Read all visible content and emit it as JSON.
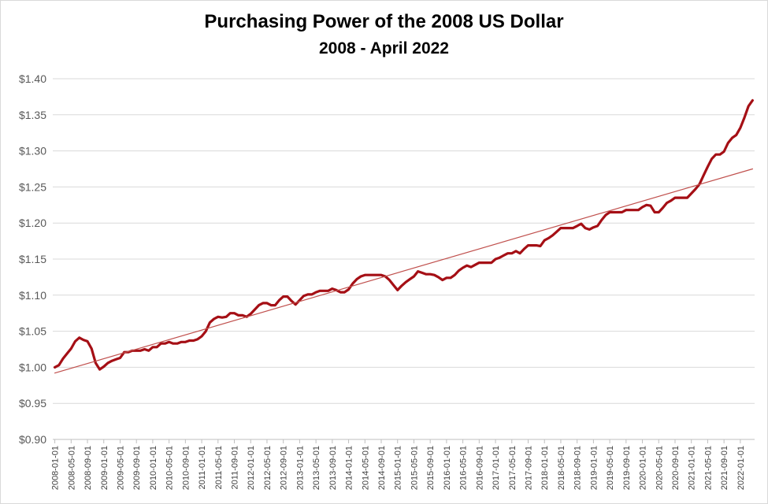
{
  "chart_data": {
    "type": "line",
    "title": "Purchasing Power of the 2008 US Dollar",
    "subtitle": "2008 - April 2022",
    "xlabel": "",
    "ylabel": "",
    "ylim": [
      0.9,
      1.4
    ],
    "y_ticks": [
      "$0.90",
      "$0.95",
      "$1.00",
      "$1.05",
      "$1.10",
      "$1.15",
      "$1.20",
      "$1.25",
      "$1.30",
      "$1.35",
      "$1.40"
    ],
    "x_ticks": [
      "2008-01-01",
      "2008-05-01",
      "2008-09-01",
      "2009-01-01",
      "2009-05-01",
      "2009-09-01",
      "2010-01-01",
      "2010-05-01",
      "2010-09-01",
      "2011-01-01",
      "2011-05-01",
      "2011-09-01",
      "2012-01-01",
      "2012-05-01",
      "2012-09-01",
      "2013-01-01",
      "2013-05-01",
      "2013-09-01",
      "2014-01-01",
      "2014-05-01",
      "2014-09-01",
      "2015-01-01",
      "2015-05-01",
      "2015-09-01",
      "2016-01-01",
      "2016-05-01",
      "2016-09-01",
      "2017-01-01",
      "2017-05-01",
      "2017-09-01",
      "2018-01-01",
      "2018-05-01",
      "2018-09-01",
      "2019-01-01",
      "2019-05-01",
      "2019-09-01",
      "2020-01-01",
      "2020-05-01",
      "2020-09-01",
      "2021-01-01",
      "2021-05-01",
      "2021-09-01",
      "2022-01-01"
    ],
    "grid": true,
    "series": [
      {
        "color": "#a50f15",
        "x": [
          "2008-01-01",
          "2008-02-01",
          "2008-03-01",
          "2008-04-01",
          "2008-05-01",
          "2008-06-01",
          "2008-07-01",
          "2008-08-01",
          "2008-09-01",
          "2008-10-01",
          "2008-11-01",
          "2008-12-01",
          "2009-01-01",
          "2009-02-01",
          "2009-03-01",
          "2009-04-01",
          "2009-05-01",
          "2009-06-01",
          "2009-07-01",
          "2009-08-01",
          "2009-09-01",
          "2009-10-01",
          "2009-11-01",
          "2009-12-01",
          "2010-01-01",
          "2010-02-01",
          "2010-03-01",
          "2010-04-01",
          "2010-05-01",
          "2010-06-01",
          "2010-07-01",
          "2010-08-01",
          "2010-09-01",
          "2010-10-01",
          "2010-11-01",
          "2010-12-01",
          "2011-01-01",
          "2011-02-01",
          "2011-03-01",
          "2011-04-01",
          "2011-05-01",
          "2011-06-01",
          "2011-07-01",
          "2011-08-01",
          "2011-09-01",
          "2011-10-01",
          "2011-11-01",
          "2011-12-01",
          "2012-01-01",
          "2012-02-01",
          "2012-03-01",
          "2012-04-01",
          "2012-05-01",
          "2012-06-01",
          "2012-07-01",
          "2012-08-01",
          "2012-09-01",
          "2012-10-01",
          "2012-11-01",
          "2012-12-01",
          "2013-01-01",
          "2013-02-01",
          "2013-03-01",
          "2013-04-01",
          "2013-05-01",
          "2013-06-01",
          "2013-07-01",
          "2013-08-01",
          "2013-09-01",
          "2013-10-01",
          "2013-11-01",
          "2013-12-01",
          "2014-01-01",
          "2014-02-01",
          "2014-03-01",
          "2014-04-01",
          "2014-05-01",
          "2014-06-01",
          "2014-07-01",
          "2014-08-01",
          "2014-09-01",
          "2014-10-01",
          "2014-11-01",
          "2014-12-01",
          "2015-01-01",
          "2015-02-01",
          "2015-03-01",
          "2015-04-01",
          "2015-05-01",
          "2015-06-01",
          "2015-07-01",
          "2015-08-01",
          "2015-09-01",
          "2015-10-01",
          "2015-11-01",
          "2015-12-01",
          "2016-01-01",
          "2016-02-01",
          "2016-03-01",
          "2016-04-01",
          "2016-05-01",
          "2016-06-01",
          "2016-07-01",
          "2016-08-01",
          "2016-09-01",
          "2016-10-01",
          "2016-11-01",
          "2016-12-01",
          "2017-01-01",
          "2017-02-01",
          "2017-03-01",
          "2017-04-01",
          "2017-05-01",
          "2017-06-01",
          "2017-07-01",
          "2017-08-01",
          "2017-09-01",
          "2017-10-01",
          "2017-11-01",
          "2017-12-01",
          "2018-01-01",
          "2018-02-01",
          "2018-03-01",
          "2018-04-01",
          "2018-05-01",
          "2018-06-01",
          "2018-07-01",
          "2018-08-01",
          "2018-09-01",
          "2018-10-01",
          "2018-11-01",
          "2018-12-01",
          "2019-01-01",
          "2019-02-01",
          "2019-03-01",
          "2019-04-01",
          "2019-05-01",
          "2019-06-01",
          "2019-07-01",
          "2019-08-01",
          "2019-09-01",
          "2019-10-01",
          "2019-11-01",
          "2019-12-01",
          "2020-01-01",
          "2020-02-01",
          "2020-03-01",
          "2020-04-01",
          "2020-05-01",
          "2020-06-01",
          "2020-07-01",
          "2020-08-01",
          "2020-09-01",
          "2020-10-01",
          "2020-11-01",
          "2020-12-01",
          "2021-01-01",
          "2021-02-01",
          "2021-03-01",
          "2021-04-01",
          "2021-05-01",
          "2021-06-01",
          "2021-07-01",
          "2021-08-01",
          "2021-09-01",
          "2021-10-01",
          "2021-11-01",
          "2021-12-01",
          "2022-01-01",
          "2022-02-01",
          "2022-03-01",
          "2022-04-01"
        ],
        "values": [
          1.0,
          1.003,
          1.012,
          1.019,
          1.026,
          1.036,
          1.041,
          1.038,
          1.036,
          1.026,
          1.006,
          0.997,
          1.001,
          1.006,
          1.009,
          1.011,
          1.013,
          1.021,
          1.021,
          1.023,
          1.023,
          1.023,
          1.025,
          1.023,
          1.028,
          1.028,
          1.033,
          1.033,
          1.035,
          1.033,
          1.033,
          1.035,
          1.035,
          1.037,
          1.037,
          1.039,
          1.043,
          1.05,
          1.062,
          1.067,
          1.07,
          1.069,
          1.07,
          1.075,
          1.075,
          1.072,
          1.072,
          1.07,
          1.074,
          1.08,
          1.086,
          1.089,
          1.089,
          1.086,
          1.086,
          1.093,
          1.098,
          1.098,
          1.092,
          1.087,
          1.093,
          1.099,
          1.101,
          1.101,
          1.104,
          1.106,
          1.106,
          1.106,
          1.109,
          1.107,
          1.104,
          1.104,
          1.108,
          1.116,
          1.122,
          1.126,
          1.128,
          1.128,
          1.128,
          1.128,
          1.128,
          1.126,
          1.121,
          1.114,
          1.107,
          1.113,
          1.118,
          1.122,
          1.126,
          1.133,
          1.131,
          1.129,
          1.129,
          1.128,
          1.125,
          1.121,
          1.124,
          1.124,
          1.128,
          1.134,
          1.138,
          1.141,
          1.139,
          1.142,
          1.145,
          1.145,
          1.145,
          1.145,
          1.15,
          1.152,
          1.155,
          1.158,
          1.158,
          1.161,
          1.158,
          1.164,
          1.169,
          1.169,
          1.169,
          1.168,
          1.176,
          1.179,
          1.183,
          1.188,
          1.193,
          1.193,
          1.193,
          1.193,
          1.196,
          1.199,
          1.193,
          1.191,
          1.194,
          1.196,
          1.204,
          1.211,
          1.215,
          1.215,
          1.215,
          1.215,
          1.218,
          1.218,
          1.218,
          1.218,
          1.222,
          1.225,
          1.224,
          1.215,
          1.215,
          1.221,
          1.228,
          1.231,
          1.235,
          1.235,
          1.235,
          1.235,
          1.241,
          1.247,
          1.254,
          1.266,
          1.278,
          1.289,
          1.295,
          1.295,
          1.299,
          1.311,
          1.318,
          1.322,
          1.332,
          1.346,
          1.362,
          1.37
        ]
      },
      {
        "type": "trendline",
        "color": "#c0504d",
        "x": [
          "2008-01-01",
          "2022-04-01"
        ],
        "values": [
          0.992,
          1.275
        ]
      }
    ]
  }
}
